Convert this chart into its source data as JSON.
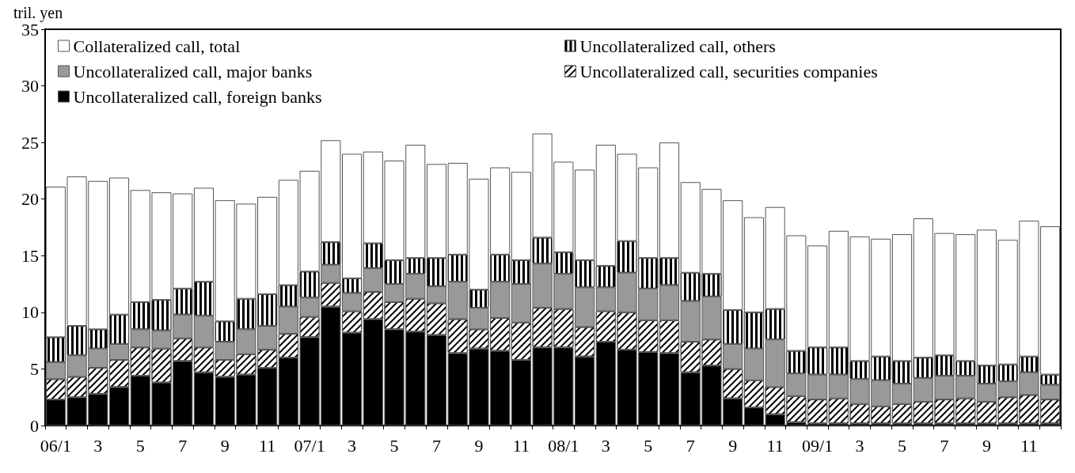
{
  "chart_data": {
    "type": "bar",
    "stacked": true,
    "ylabel": "tril. yen",
    "ylim": [
      0,
      35
    ],
    "yticks": [
      0,
      5,
      10,
      15,
      20,
      25,
      30,
      35
    ],
    "grid": false,
    "legend": "top left",
    "categories": [
      "06/1",
      null,
      "3",
      null,
      "5",
      null,
      "7",
      null,
      "9",
      null,
      "11",
      null,
      "07/1",
      null,
      "3",
      null,
      "5",
      null,
      "7",
      null,
      "9",
      null,
      "11",
      null,
      "08/1",
      null,
      "3",
      null,
      "5",
      null,
      "7",
      null,
      "9",
      null,
      "11",
      null,
      "09/1",
      null,
      "3",
      null,
      "5",
      null,
      "7",
      null,
      "9",
      null,
      "11",
      null
    ],
    "series": [
      {
        "name": "Uncollateralized call, foreign banks",
        "color": "#000000",
        "values": [
          2.3,
          2.5,
          2.8,
          3.4,
          4.4,
          3.8,
          5.7,
          4.7,
          4.3,
          4.5,
          5.1,
          6.0,
          7.8,
          10.5,
          8.2,
          9.4,
          8.5,
          8.3,
          8.0,
          6.4,
          6.8,
          6.6,
          5.8,
          6.9,
          6.9,
          6.1,
          7.4,
          6.7,
          6.5,
          6.4,
          4.7,
          5.3,
          2.4,
          1.6,
          1.0,
          0.3,
          0.2,
          0.2,
          0.2,
          0.2,
          0.2,
          0.2,
          0.2,
          0.2,
          0.2,
          0.2,
          0.2,
          0.2
        ]
      },
      {
        "name": "Uncollateralized call, securities companies",
        "color": "#ffffff",
        "values": [
          1.8,
          1.8,
          2.3,
          2.4,
          2.5,
          3.0,
          2.0,
          2.2,
          1.5,
          1.8,
          1.6,
          2.1,
          1.8,
          2.1,
          1.9,
          2.4,
          2.4,
          2.9,
          2.8,
          3.0,
          1.7,
          2.9,
          3.3,
          3.5,
          3.4,
          2.6,
          2.7,
          3.3,
          2.8,
          2.9,
          2.7,
          2.3,
          2.6,
          2.4,
          2.4,
          2.3,
          2.1,
          2.2,
          1.7,
          1.5,
          1.7,
          1.9,
          2.1,
          2.2,
          1.9,
          2.3,
          2.5,
          2.1
        ]
      },
      {
        "name": "Uncollateralized call, major banks",
        "color": "#999999",
        "values": [
          1.5,
          1.9,
          1.7,
          1.4,
          1.6,
          1.6,
          2.1,
          2.8,
          1.6,
          2.2,
          2.1,
          2.4,
          1.7,
          1.6,
          1.6,
          2.1,
          1.6,
          2.2,
          1.5,
          3.3,
          1.9,
          3.2,
          3.4,
          3.9,
          3.1,
          3.5,
          2.1,
          3.5,
          2.8,
          3.1,
          3.6,
          3.8,
          2.2,
          2.8,
          4.2,
          2.0,
          2.2,
          2.1,
          2.2,
          2.3,
          1.8,
          2.1,
          2.1,
          2.0,
          1.6,
          1.4,
          2.0,
          1.3
        ]
      },
      {
        "name": "Uncollateralized call, others",
        "color": "#ffffff",
        "values": [
          2.2,
          2.6,
          1.7,
          2.6,
          2.4,
          2.7,
          2.3,
          3.0,
          1.8,
          2.7,
          2.8,
          1.9,
          2.3,
          2.0,
          1.3,
          2.2,
          2.1,
          1.4,
          2.5,
          2.4,
          1.6,
          2.4,
          2.1,
          2.3,
          1.9,
          2.4,
          1.9,
          2.8,
          2.7,
          2.4,
          2.5,
          2.0,
          3.0,
          3.2,
          2.7,
          2.0,
          2.4,
          2.4,
          1.6,
          2.1,
          2.0,
          1.8,
          1.8,
          1.3,
          1.6,
          1.5,
          1.4,
          0.9
        ]
      },
      {
        "name": "Collateralized call, total",
        "color": "#ffffff",
        "values": [
          13.3,
          13.2,
          13.1,
          12.1,
          9.9,
          9.5,
          8.4,
          8.3,
          10.7,
          8.4,
          8.6,
          9.3,
          8.9,
          9.0,
          11.0,
          8.1,
          8.8,
          10.0,
          8.3,
          8.1,
          9.8,
          7.7,
          7.8,
          9.2,
          8.0,
          8.0,
          10.7,
          7.7,
          8.0,
          10.2,
          8.0,
          7.5,
          9.7,
          8.4,
          9.0,
          10.2,
          9.0,
          10.3,
          11.0,
          10.4,
          11.2,
          12.3,
          10.8,
          11.2,
          12.0,
          11.0,
          12.0,
          13.1
        ]
      }
    ]
  }
}
